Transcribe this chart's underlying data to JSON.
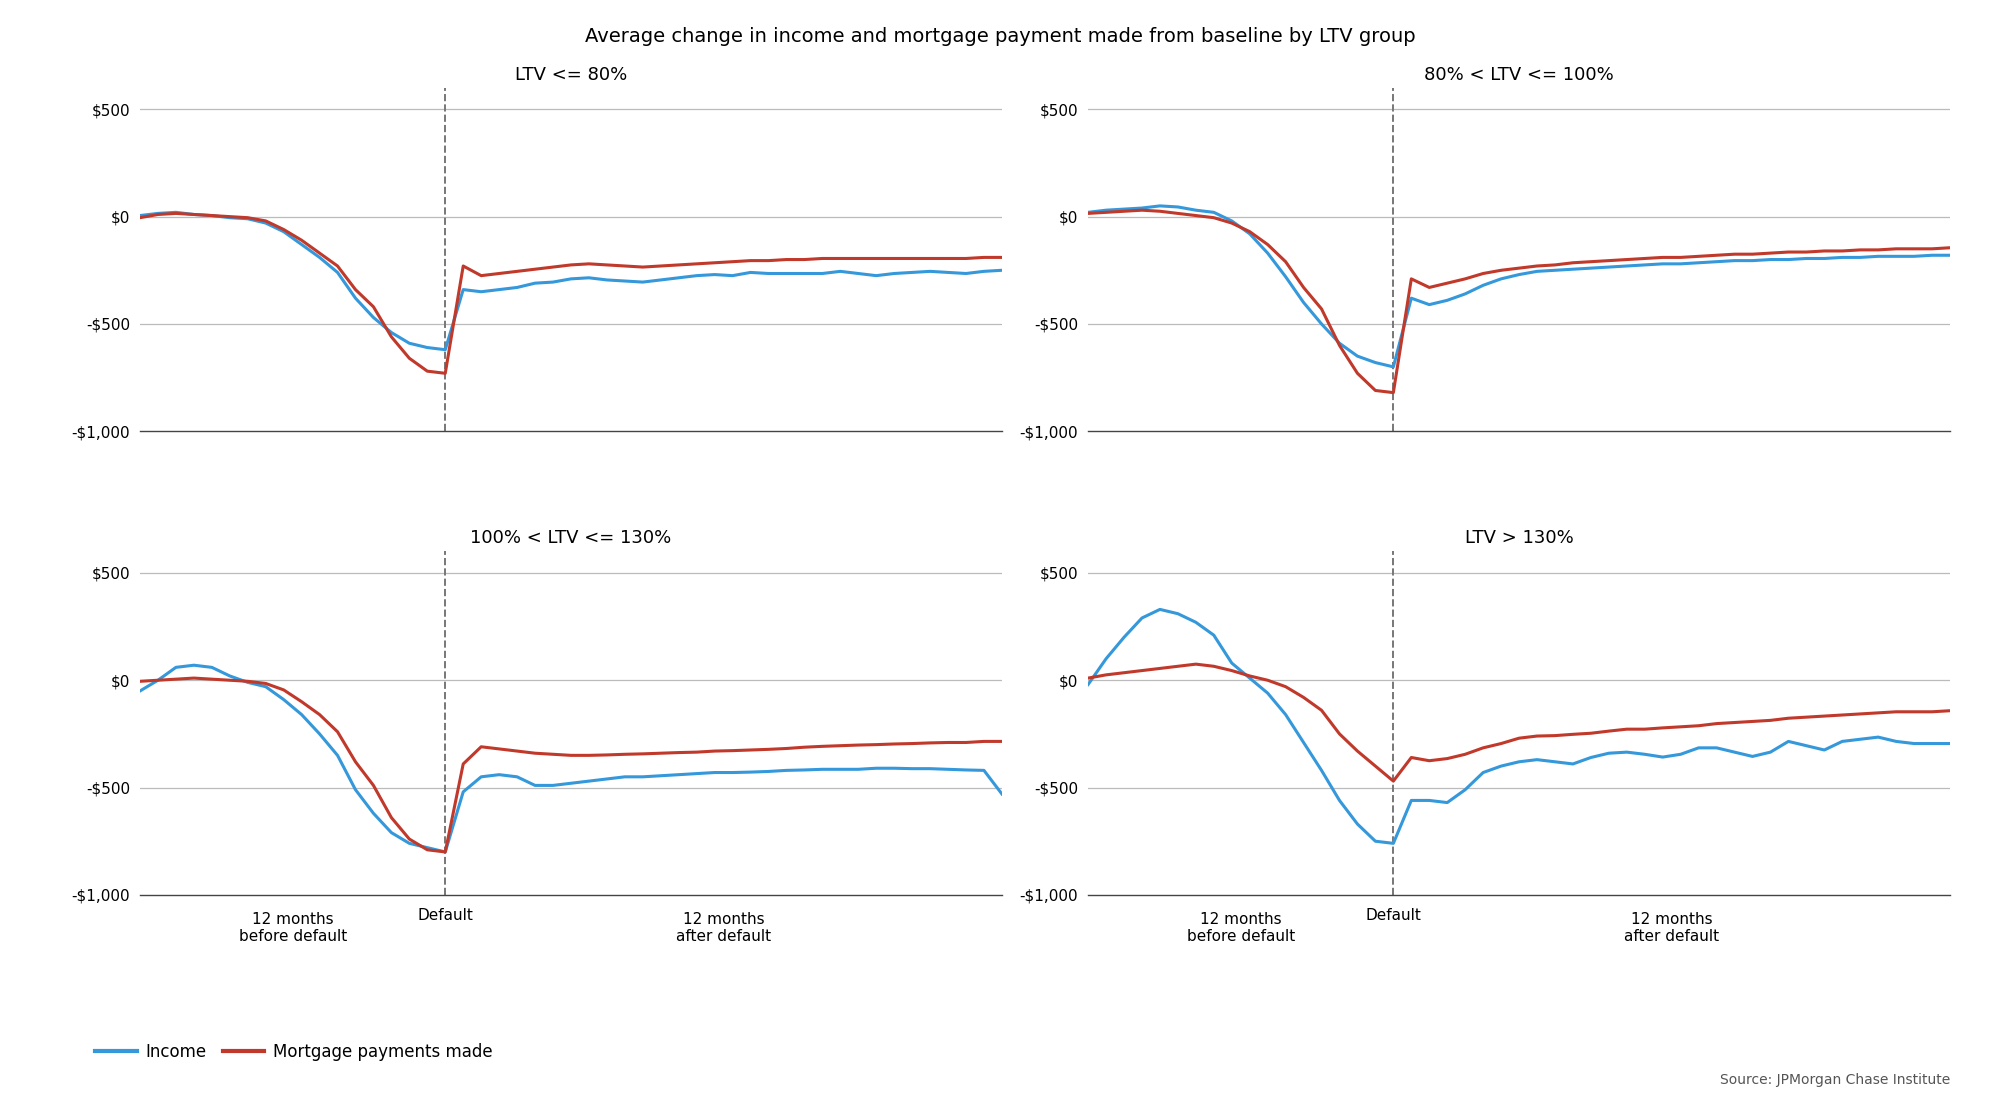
{
  "title": "Average change in income and mortgage payment made from baseline by LTV group",
  "panels": [
    {
      "label": "LTV <= 80%",
      "income": [
        5,
        15,
        20,
        10,
        5,
        -5,
        -10,
        -30,
        -70,
        -130,
        -190,
        -260,
        -380,
        -470,
        -540,
        -590,
        -610,
        -620,
        -340,
        -350,
        -340,
        -330,
        -310,
        -305,
        -290,
        -285,
        -295,
        -300,
        -305,
        -295,
        -285,
        -275,
        -270,
        -275,
        -260,
        -265,
        -265,
        -265,
        -265,
        -255,
        -265,
        -275,
        -265,
        -260,
        -255,
        -260,
        -265,
        -255,
        -250
      ],
      "mortgage": [
        -5,
        10,
        15,
        10,
        5,
        0,
        -5,
        -20,
        -60,
        -110,
        -170,
        -230,
        -340,
        -420,
        -560,
        -660,
        -720,
        -730,
        -230,
        -275,
        -265,
        -255,
        -245,
        -235,
        -225,
        -220,
        -225,
        -230,
        -235,
        -230,
        -225,
        -220,
        -215,
        -210,
        -205,
        -205,
        -200,
        -200,
        -195,
        -195,
        -195,
        -195,
        -195,
        -195,
        -195,
        -195,
        -195,
        -190,
        -190
      ]
    },
    {
      "label": "80% < LTV <= 100%",
      "income": [
        20,
        30,
        35,
        40,
        50,
        45,
        30,
        20,
        -20,
        -80,
        -170,
        -280,
        -400,
        -500,
        -590,
        -650,
        -680,
        -700,
        -380,
        -410,
        -390,
        -360,
        -320,
        -290,
        -270,
        -255,
        -250,
        -245,
        -240,
        -235,
        -230,
        -225,
        -220,
        -220,
        -215,
        -210,
        -205,
        -205,
        -200,
        -200,
        -195,
        -195,
        -190,
        -190,
        -185,
        -185,
        -185,
        -180,
        -180
      ],
      "mortgage": [
        15,
        20,
        25,
        30,
        25,
        15,
        5,
        -5,
        -30,
        -70,
        -130,
        -210,
        -330,
        -430,
        -600,
        -730,
        -810,
        -820,
        -290,
        -330,
        -310,
        -290,
        -265,
        -250,
        -240,
        -230,
        -225,
        -215,
        -210,
        -205,
        -200,
        -195,
        -190,
        -190,
        -185,
        -180,
        -175,
        -175,
        -170,
        -165,
        -165,
        -160,
        -160,
        -155,
        -155,
        -150,
        -150,
        -150,
        -145
      ]
    },
    {
      "label": "100% < LTV <= 130%",
      "income": [
        -50,
        0,
        60,
        70,
        60,
        20,
        -10,
        -30,
        -90,
        -160,
        -250,
        -350,
        -510,
        -620,
        -710,
        -760,
        -780,
        -800,
        -520,
        -450,
        -440,
        -450,
        -490,
        -490,
        -480,
        -470,
        -460,
        -450,
        -450,
        -445,
        -440,
        -435,
        -430,
        -430,
        -428,
        -425,
        -420,
        -418,
        -415,
        -415,
        -415,
        -410,
        -410,
        -412,
        -412,
        -415,
        -418,
        -420,
        -530
      ],
      "mortgage": [
        -5,
        0,
        5,
        10,
        5,
        0,
        -5,
        -15,
        -45,
        -100,
        -160,
        -240,
        -380,
        -490,
        -640,
        -740,
        -790,
        -800,
        -390,
        -310,
        -320,
        -330,
        -340,
        -345,
        -350,
        -350,
        -348,
        -345,
        -343,
        -340,
        -337,
        -335,
        -330,
        -328,
        -325,
        -322,
        -318,
        -312,
        -308,
        -305,
        -302,
        -300,
        -297,
        -295,
        -292,
        -290,
        -290,
        -285,
        -285
      ]
    },
    {
      "label": "LTV > 130%",
      "income": [
        -20,
        100,
        200,
        290,
        330,
        310,
        270,
        210,
        80,
        10,
        -60,
        -160,
        -290,
        -420,
        -560,
        -670,
        -750,
        -760,
        -560,
        -560,
        -570,
        -510,
        -430,
        -400,
        -380,
        -370,
        -380,
        -390,
        -360,
        -340,
        -335,
        -345,
        -358,
        -345,
        -315,
        -315,
        -335,
        -355,
        -335,
        -285,
        -305,
        -325,
        -285,
        -275,
        -265,
        -285,
        -295,
        -295,
        -295
      ],
      "mortgage": [
        10,
        25,
        35,
        45,
        55,
        65,
        75,
        65,
        45,
        20,
        0,
        -30,
        -80,
        -140,
        -250,
        -330,
        -400,
        -470,
        -360,
        -375,
        -365,
        -345,
        -315,
        -295,
        -270,
        -260,
        -258,
        -252,
        -247,
        -237,
        -228,
        -228,
        -222,
        -217,
        -212,
        -202,
        -197,
        -192,
        -187,
        -177,
        -172,
        -167,
        -162,
        -157,
        -152,
        -147,
        -147,
        -147,
        -142
      ]
    }
  ],
  "n_points": 49,
  "default_idx": 17,
  "ylim": [
    -1000,
    600
  ],
  "yticks": [
    -1000,
    -500,
    0,
    500
  ],
  "yticklabels": [
    "-$1,000",
    "-$500",
    "$0",
    "$500"
  ],
  "income_color": "#3498db",
  "mortgage_color": "#c0392b",
  "xlabel_left": "12 months\nbefore default",
  "xlabel_mid": "Default",
  "xlabel_right": "12 months\nafter default",
  "source_text": "Source: JPMorgan Chase Institute",
  "legend_income": "Income",
  "legend_mortgage": "Mortgage payments made",
  "background_color": "#ffffff",
  "grid_color": "#bbbbbb",
  "line_width": 2.2,
  "title_fontsize": 14,
  "panel_title_fontsize": 13,
  "tick_fontsize": 11,
  "label_fontsize": 11
}
